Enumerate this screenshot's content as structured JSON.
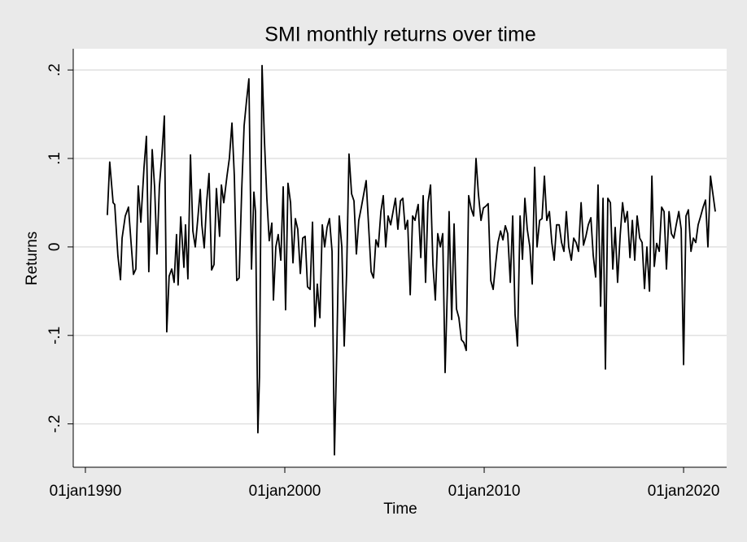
{
  "chart_data": {
    "type": "line",
    "title": "SMI monthly returns over time",
    "x_label": "Time",
    "y_label": "Returns",
    "xlim": [
      1989.39,
      2022.16
    ],
    "ylim": [
      -0.249,
      0.224
    ],
    "xticks": [
      {
        "value": 1990,
        "label": "01jan1990"
      },
      {
        "value": 2000,
        "label": "01jan2000"
      },
      {
        "value": 2010,
        "label": "01jan2010"
      },
      {
        "value": 2020,
        "label": "01jan2020"
      }
    ],
    "yticks": [
      {
        "value": -0.2,
        "label": "-.2"
      },
      {
        "value": -0.1,
        "label": "-.1"
      },
      0,
      {
        "value": 0.1,
        "label": ".1"
      },
      {
        "value": 0.2,
        "label": ".2"
      }
    ],
    "grid": true,
    "series": [
      {
        "name": "Returns",
        "color": "#000000",
        "x": [
          1991.1,
          1991.22,
          1991.39,
          1991.47,
          1991.63,
          1991.76,
          1991.84,
          1992.0,
          1992.16,
          1992.29,
          1992.41,
          1992.53,
          1992.65,
          1992.78,
          1992.94,
          1993.06,
          1993.18,
          1993.35,
          1993.47,
          1993.59,
          1993.71,
          1993.84,
          1993.96,
          1994.08,
          1994.2,
          1994.33,
          1994.45,
          1994.57,
          1994.65,
          1994.78,
          1994.94,
          1995.02,
          1995.14,
          1995.27,
          1995.39,
          1995.51,
          1995.63,
          1995.76,
          1995.84,
          1995.96,
          1996.08,
          1996.2,
          1996.33,
          1996.45,
          1996.57,
          1996.73,
          1996.82,
          1996.94,
          1997.1,
          1997.22,
          1997.35,
          1997.47,
          1997.59,
          1997.71,
          1997.84,
          1997.96,
          1998.08,
          1998.2,
          1998.33,
          1998.45,
          1998.53,
          1998.65,
          1998.73,
          1998.86,
          1998.98,
          1999.1,
          1999.22,
          1999.35,
          1999.43,
          1999.55,
          1999.67,
          1999.8,
          1999.92,
          2000.04,
          2000.16,
          2000.29,
          2000.41,
          2000.53,
          2000.65,
          2000.78,
          2000.9,
          2001.02,
          2001.14,
          2001.27,
          2001.39,
          2001.51,
          2001.63,
          2001.76,
          2001.88,
          2002.0,
          2002.12,
          2002.24,
          2002.37,
          2002.49,
          2002.61,
          2002.73,
          2002.86,
          2002.98,
          2003.1,
          2003.22,
          2003.35,
          2003.47,
          2003.59,
          2003.71,
          2003.84,
          2003.96,
          2004.08,
          2004.2,
          2004.33,
          2004.45,
          2004.57,
          2004.69,
          2004.82,
          2004.94,
          2005.06,
          2005.18,
          2005.31,
          2005.43,
          2005.55,
          2005.67,
          2005.8,
          2005.92,
          2006.04,
          2006.16,
          2006.29,
          2006.41,
          2006.53,
          2006.61,
          2006.69,
          2006.82,
          2006.94,
          2007.06,
          2007.18,
          2007.31,
          2007.43,
          2007.55,
          2007.67,
          2007.8,
          2007.92,
          2008.04,
          2008.16,
          2008.24,
          2008.37,
          2008.49,
          2008.61,
          2008.73,
          2008.86,
          2008.98,
          2009.1,
          2009.22,
          2009.35,
          2009.47,
          2009.59,
          2009.71,
          2009.84,
          2009.96,
          2010.08,
          2010.2,
          2010.33,
          2010.45,
          2010.57,
          2010.69,
          2010.82,
          2010.94,
          2011.06,
          2011.18,
          2011.31,
          2011.43,
          2011.55,
          2011.67,
          2011.8,
          2011.92,
          2012.04,
          2012.16,
          2012.29,
          2012.41,
          2012.53,
          2012.65,
          2012.78,
          2012.9,
          2013.02,
          2013.14,
          2013.27,
          2013.39,
          2013.51,
          2013.63,
          2013.76,
          2013.88,
          2014.0,
          2014.12,
          2014.24,
          2014.37,
          2014.49,
          2014.61,
          2014.73,
          2014.86,
          2014.98,
          2015.1,
          2015.22,
          2015.35,
          2015.47,
          2015.59,
          2015.71,
          2015.84,
          2015.96,
          2016.08,
          2016.2,
          2016.33,
          2016.45,
          2016.57,
          2016.69,
          2016.82,
          2016.94,
          2017.06,
          2017.18,
          2017.31,
          2017.43,
          2017.55,
          2017.67,
          2017.8,
          2017.92,
          2018.04,
          2018.16,
          2018.29,
          2018.41,
          2018.53,
          2018.65,
          2018.78,
          2018.9,
          2019.02,
          2019.14,
          2019.27,
          2019.39,
          2019.51,
          2019.63,
          2019.76,
          2019.88,
          2020.0,
          2020.12,
          2020.24,
          2020.37,
          2020.49,
          2020.61,
          2020.73,
          2020.86,
          2020.98,
          2021.1,
          2021.22,
          2021.35,
          2021.47,
          2021.59
        ],
        "values": [
          0.036,
          0.096,
          0.05,
          0.048,
          -0.01,
          -0.037,
          0.01,
          0.035,
          0.045,
          0.005,
          -0.031,
          -0.025,
          0.069,
          0.028,
          0.09,
          0.125,
          -0.028,
          0.11,
          0.068,
          -0.008,
          0.068,
          0.105,
          0.148,
          -0.096,
          -0.033,
          -0.025,
          -0.04,
          0.014,
          -0.043,
          0.034,
          -0.023,
          0.025,
          -0.036,
          0.104,
          0.018,
          0.0,
          0.03,
          0.065,
          0.025,
          -0.001,
          0.05,
          0.083,
          -0.026,
          -0.02,
          0.066,
          0.012,
          0.07,
          0.05,
          0.08,
          0.1,
          0.14,
          0.08,
          -0.038,
          -0.035,
          0.065,
          0.137,
          0.165,
          0.19,
          -0.025,
          0.062,
          0.04,
          -0.21,
          -0.147,
          0.205,
          0.12,
          0.055,
          0.007,
          0.027,
          -0.06,
          0.0,
          0.014,
          -0.015,
          0.068,
          -0.071,
          0.072,
          0.05,
          -0.018,
          0.032,
          0.02,
          -0.03,
          0.01,
          0.012,
          -0.045,
          -0.048,
          0.028,
          -0.09,
          -0.042,
          -0.08,
          0.025,
          0.0,
          0.022,
          0.032,
          -0.005,
          -0.235,
          -0.115,
          0.035,
          0.0,
          -0.112,
          -0.03,
          0.105,
          0.06,
          0.052,
          -0.008,
          0.03,
          0.045,
          0.06,
          0.075,
          0.025,
          -0.028,
          -0.035,
          0.008,
          0.0,
          0.04,
          0.058,
          0.0,
          0.035,
          0.025,
          0.04,
          0.055,
          0.02,
          0.052,
          0.055,
          0.02,
          0.03,
          -0.054,
          0.035,
          0.03,
          0.04,
          0.048,
          -0.012,
          0.058,
          -0.04,
          0.05,
          0.07,
          -0.02,
          -0.06,
          0.015,
          0.0,
          0.015,
          -0.142,
          -0.042,
          0.04,
          -0.082,
          0.026,
          -0.07,
          -0.08,
          -0.105,
          -0.108,
          -0.117,
          0.058,
          0.043,
          0.035,
          0.1,
          0.06,
          0.03,
          0.044,
          0.046,
          0.049,
          -0.038,
          -0.048,
          -0.02,
          0.005,
          0.018,
          0.008,
          0.024,
          0.015,
          -0.04,
          0.035,
          -0.077,
          -0.112,
          0.035,
          -0.014,
          0.055,
          0.02,
          0.0,
          -0.042,
          0.09,
          0.0,
          0.03,
          0.032,
          0.08,
          0.03,
          0.04,
          0.005,
          -0.015,
          0.025,
          0.025,
          0.005,
          -0.005,
          0.04,
          0.0,
          -0.015,
          0.01,
          0.005,
          -0.005,
          0.05,
          0.002,
          0.012,
          0.025,
          0.033,
          -0.01,
          -0.034,
          0.07,
          -0.067,
          0.055,
          -0.138,
          0.055,
          0.05,
          -0.025,
          0.022,
          -0.04,
          0.013,
          0.05,
          0.028,
          0.04,
          -0.012,
          0.03,
          -0.015,
          0.035,
          0.01,
          0.005,
          -0.047,
          0.0,
          -0.05,
          0.08,
          -0.022,
          0.004,
          -0.005,
          0.045,
          0.04,
          -0.025,
          0.04,
          0.015,
          0.01,
          0.025,
          0.04,
          0.02,
          -0.133,
          0.035,
          0.042,
          -0.005,
          0.01,
          0.005,
          0.025,
          0.035,
          0.045,
          0.053,
          0.0,
          0.08,
          0.06,
          0.04
        ]
      }
    ]
  }
}
